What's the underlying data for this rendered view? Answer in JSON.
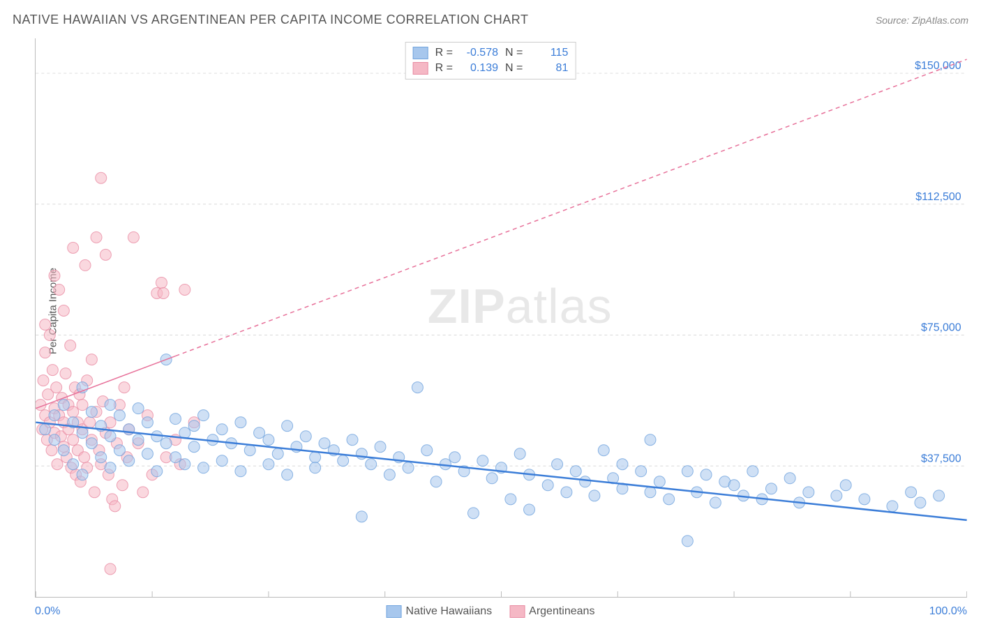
{
  "title": "NATIVE HAWAIIAN VS ARGENTINEAN PER CAPITA INCOME CORRELATION CHART",
  "source": "Source: ZipAtlas.com",
  "ylabel": "Per Capita Income",
  "watermark_bold": "ZIP",
  "watermark_light": "atlas",
  "chart": {
    "type": "scatter",
    "xlim": [
      0,
      100
    ],
    "ylim": [
      0,
      160000
    ],
    "x_axis_label_left": "0.0%",
    "x_axis_label_right": "100.0%",
    "x_ticks": [
      0,
      12.5,
      25,
      37.5,
      50,
      62.5,
      75,
      87.5,
      100
    ],
    "y_ticks": [
      {
        "v": 37500,
        "label": "$37,500"
      },
      {
        "v": 75000,
        "label": "$75,000"
      },
      {
        "v": 112500,
        "label": "$112,500"
      },
      {
        "v": 150000,
        "label": "$150,000"
      }
    ],
    "grid_color": "#d8d8d8",
    "grid_dash": "4,4",
    "background_color": "#ffffff",
    "marker_radius": 8,
    "marker_opacity": 0.55,
    "series": [
      {
        "name": "Native Hawaiians",
        "color_fill": "#a7c7ed",
        "color_stroke": "#6fa3dd",
        "R": "-0.578",
        "N": "115",
        "trend": {
          "x1": 0,
          "y1": 50000,
          "x2": 100,
          "y2": 22000,
          "color": "#3b7dd8",
          "width": 2.5,
          "dash": "none"
        },
        "points": [
          [
            1,
            48000
          ],
          [
            2,
            52000
          ],
          [
            2,
            45000
          ],
          [
            3,
            55000
          ],
          [
            3,
            42000
          ],
          [
            4,
            50000
          ],
          [
            4,
            38000
          ],
          [
            5,
            47000
          ],
          [
            5,
            60000
          ],
          [
            5,
            35000
          ],
          [
            6,
            53000
          ],
          [
            6,
            44000
          ],
          [
            7,
            49000
          ],
          [
            7,
            40000
          ],
          [
            8,
            55000
          ],
          [
            8,
            37000
          ],
          [
            8,
            46000
          ],
          [
            9,
            42000
          ],
          [
            9,
            52000
          ],
          [
            10,
            48000
          ],
          [
            10,
            39000
          ],
          [
            11,
            45000
          ],
          [
            11,
            54000
          ],
          [
            12,
            41000
          ],
          [
            12,
            50000
          ],
          [
            13,
            46000
          ],
          [
            13,
            36000
          ],
          [
            14,
            68000
          ],
          [
            14,
            44000
          ],
          [
            15,
            51000
          ],
          [
            15,
            40000
          ],
          [
            16,
            47000
          ],
          [
            16,
            38000
          ],
          [
            17,
            49000
          ],
          [
            17,
            43000
          ],
          [
            18,
            52000
          ],
          [
            18,
            37000
          ],
          [
            19,
            45000
          ],
          [
            20,
            48000
          ],
          [
            20,
            39000
          ],
          [
            21,
            44000
          ],
          [
            22,
            50000
          ],
          [
            22,
            36000
          ],
          [
            23,
            42000
          ],
          [
            24,
            47000
          ],
          [
            25,
            45000
          ],
          [
            25,
            38000
          ],
          [
            26,
            41000
          ],
          [
            27,
            49000
          ],
          [
            27,
            35000
          ],
          [
            28,
            43000
          ],
          [
            29,
            46000
          ],
          [
            30,
            40000
          ],
          [
            30,
            37000
          ],
          [
            31,
            44000
          ],
          [
            32,
            42000
          ],
          [
            33,
            39000
          ],
          [
            34,
            45000
          ],
          [
            35,
            23000
          ],
          [
            35,
            41000
          ],
          [
            36,
            38000
          ],
          [
            37,
            43000
          ],
          [
            38,
            35000
          ],
          [
            39,
            40000
          ],
          [
            40,
            37000
          ],
          [
            41,
            60000
          ],
          [
            42,
            42000
          ],
          [
            43,
            33000
          ],
          [
            44,
            38000
          ],
          [
            45,
            40000
          ],
          [
            46,
            36000
          ],
          [
            47,
            24000
          ],
          [
            48,
            39000
          ],
          [
            49,
            34000
          ],
          [
            50,
            37000
          ],
          [
            51,
            28000
          ],
          [
            52,
            41000
          ],
          [
            53,
            35000
          ],
          [
            53,
            25000
          ],
          [
            55,
            32000
          ],
          [
            56,
            38000
          ],
          [
            57,
            30000
          ],
          [
            58,
            36000
          ],
          [
            59,
            33000
          ],
          [
            60,
            29000
          ],
          [
            61,
            42000
          ],
          [
            62,
            34000
          ],
          [
            63,
            31000
          ],
          [
            63,
            38000
          ],
          [
            65,
            36000
          ],
          [
            66,
            30000
          ],
          [
            66,
            45000
          ],
          [
            67,
            33000
          ],
          [
            68,
            28000
          ],
          [
            70,
            36000
          ],
          [
            70,
            16000
          ],
          [
            71,
            30000
          ],
          [
            72,
            35000
          ],
          [
            73,
            27000
          ],
          [
            74,
            33000
          ],
          [
            75,
            32000
          ],
          [
            76,
            29000
          ],
          [
            77,
            36000
          ],
          [
            78,
            28000
          ],
          [
            79,
            31000
          ],
          [
            81,
            34000
          ],
          [
            82,
            27000
          ],
          [
            83,
            30000
          ],
          [
            86,
            29000
          ],
          [
            87,
            32000
          ],
          [
            89,
            28000
          ],
          [
            92,
            26000
          ],
          [
            94,
            30000
          ],
          [
            95,
            27000
          ],
          [
            97,
            29000
          ]
        ]
      },
      {
        "name": "Argentineans",
        "color_fill": "#f5b8c5",
        "color_stroke": "#e88ba2",
        "R": "0.139",
        "N": "81",
        "trend": {
          "x1": 0,
          "y1": 54000,
          "x2": 100,
          "y2": 154000,
          "color": "#e77099",
          "width": 1.5,
          "dash": "6,5",
          "solid_end": 15
        },
        "points": [
          [
            0.5,
            55000
          ],
          [
            0.7,
            48000
          ],
          [
            0.8,
            62000
          ],
          [
            1,
            52000
          ],
          [
            1,
            70000
          ],
          [
            1.2,
            45000
          ],
          [
            1.3,
            58000
          ],
          [
            1.5,
            50000
          ],
          [
            1.5,
            75000
          ],
          [
            1.7,
            42000
          ],
          [
            1.8,
            65000
          ],
          [
            2,
            54000
          ],
          [
            2,
            47000
          ],
          [
            2.2,
            60000
          ],
          [
            2.3,
            38000
          ],
          [
            2.5,
            52000
          ],
          [
            2.5,
            88000
          ],
          [
            2.7,
            46000
          ],
          [
            2.8,
            57000
          ],
          [
            3,
            50000
          ],
          [
            3,
            43000
          ],
          [
            3.2,
            64000
          ],
          [
            3.3,
            40000
          ],
          [
            3.5,
            55000
          ],
          [
            3.5,
            48000
          ],
          [
            3.7,
            72000
          ],
          [
            3.8,
            37000
          ],
          [
            4,
            53000
          ],
          [
            4,
            45000
          ],
          [
            4.2,
            60000
          ],
          [
            4.3,
            35000
          ],
          [
            4.5,
            50000
          ],
          [
            4.5,
            42000
          ],
          [
            4.7,
            58000
          ],
          [
            4.8,
            33000
          ],
          [
            5,
            48000
          ],
          [
            5,
            55000
          ],
          [
            5.2,
            40000
          ],
          [
            5.3,
            95000
          ],
          [
            5.5,
            62000
          ],
          [
            5.5,
            37000
          ],
          [
            5.8,
            50000
          ],
          [
            6,
            45000
          ],
          [
            6,
            68000
          ],
          [
            6.3,
            30000
          ],
          [
            6.5,
            53000
          ],
          [
            6.5,
            103000
          ],
          [
            6.8,
            42000
          ],
          [
            7,
            120000
          ],
          [
            7,
            38000
          ],
          [
            7.2,
            56000
          ],
          [
            7.5,
            47000
          ],
          [
            7.5,
            98000
          ],
          [
            7.8,
            35000
          ],
          [
            8,
            50000
          ],
          [
            8.2,
            28000
          ],
          [
            8.5,
            26000
          ],
          [
            8.7,
            44000
          ],
          [
            9,
            55000
          ],
          [
            9.3,
            32000
          ],
          [
            9.5,
            60000
          ],
          [
            9.8,
            40000
          ],
          [
            10,
            48000
          ],
          [
            10.5,
            103000
          ],
          [
            11,
            44000
          ],
          [
            11.5,
            30000
          ],
          [
            12,
            52000
          ],
          [
            12.5,
            35000
          ],
          [
            13,
            87000
          ],
          [
            13.5,
            90000
          ],
          [
            13.7,
            87000
          ],
          [
            14,
            40000
          ],
          [
            15,
            45000
          ],
          [
            15.5,
            38000
          ],
          [
            16,
            88000
          ],
          [
            17,
            50000
          ],
          [
            8,
            8000
          ],
          [
            3,
            82000
          ],
          [
            2,
            92000
          ],
          [
            1,
            78000
          ],
          [
            4,
            100000
          ]
        ]
      }
    ]
  },
  "legend_labels": {
    "R": "R =",
    "N": "N ="
  }
}
